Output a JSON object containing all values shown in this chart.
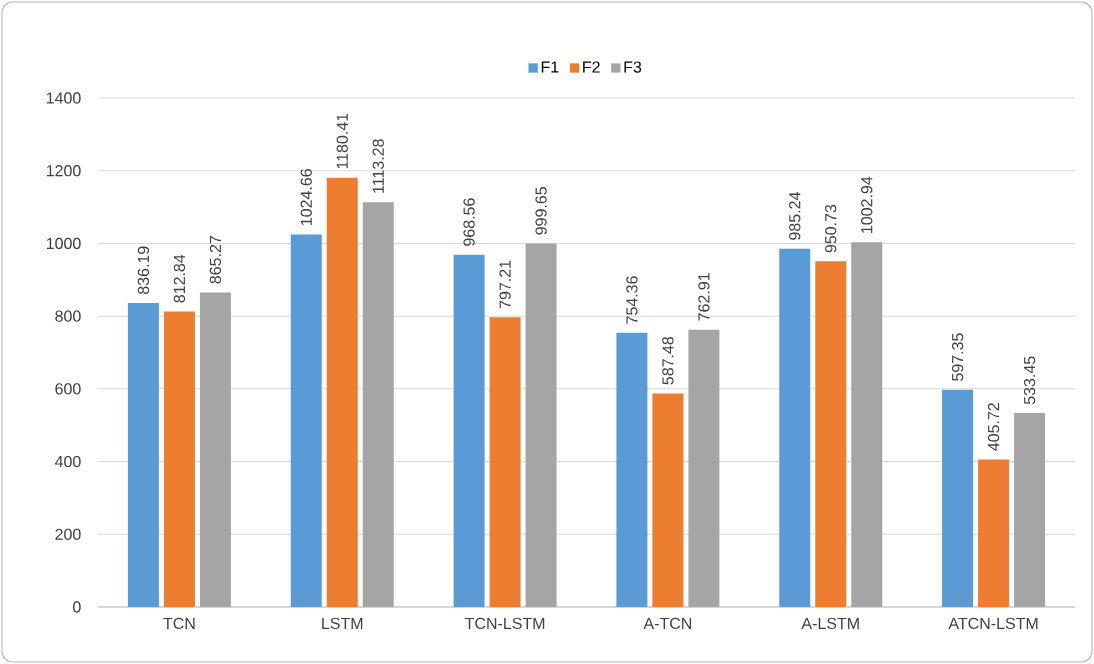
{
  "chart_data": {
    "type": "bar",
    "categories": [
      "TCN",
      "LSTM",
      "TCN-LSTM",
      "A-TCN",
      "A-LSTM",
      "ATCN-LSTM"
    ],
    "series": [
      {
        "name": "F1",
        "color": "#5b9bd5",
        "values": [
          836.19,
          1024.66,
          968.56,
          754.36,
          985.24,
          597.35
        ]
      },
      {
        "name": "F2",
        "color": "#ed7d31",
        "values": [
          812.84,
          1180.41,
          797.21,
          587.48,
          950.73,
          405.72
        ]
      },
      {
        "name": "F3",
        "color": "#a5a5a5",
        "values": [
          865.27,
          1113.28,
          999.65,
          762.91,
          1002.94,
          533.45
        ]
      }
    ],
    "ylim": [
      0,
      1400
    ],
    "yticks": [
      0,
      200,
      400,
      600,
      800,
      1000,
      1200,
      1400
    ],
    "grid": "y",
    "legend": "top",
    "data_labels": true
  }
}
